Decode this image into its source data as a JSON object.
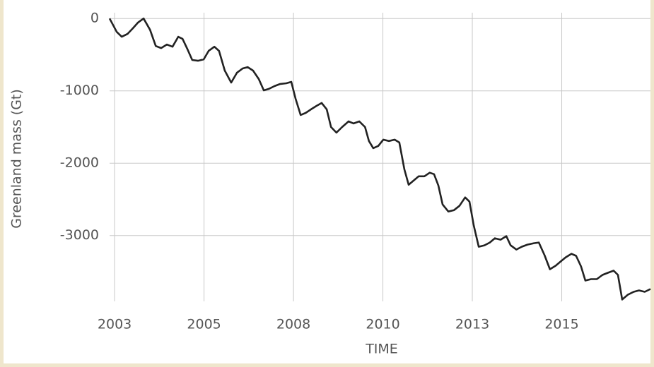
{
  "chart_data": {
    "type": "line",
    "x_label": "TIME",
    "y_label": "Greenland mass (Gt)",
    "xlim": [
      2002.86,
      2017.98
    ],
    "ylim": [
      -3910,
      80
    ],
    "xticks": [
      2003,
      {
        "value": 2005.5,
        "label": "2005"
      },
      2008,
      {
        "value": 2010.5,
        "label": "2010"
      },
      2013,
      {
        "value": 2015.5,
        "label": "2015"
      }
    ],
    "yticks": [
      0,
      -1000,
      -2000,
      -3000
    ],
    "grid": true,
    "x": [
      2002.86,
      2003.06,
      2003.2,
      2003.36,
      2003.51,
      2003.65,
      2003.81,
      2003.99,
      2004.15,
      2004.3,
      2004.46,
      2004.62,
      2004.78,
      2004.9,
      2005.04,
      2005.17,
      2005.33,
      2005.49,
      2005.63,
      2005.79,
      2005.92,
      2006.08,
      2006.26,
      2006.42,
      2006.58,
      2006.72,
      2006.87,
      2007.03,
      2007.17,
      2007.31,
      2007.47,
      2007.62,
      2007.8,
      2007.94,
      2008.06,
      2008.2,
      2008.34,
      2008.49,
      2008.65,
      2008.79,
      2008.93,
      2009.05,
      2009.2,
      2009.36,
      2009.54,
      2009.68,
      2009.84,
      2010.0,
      2010.11,
      2010.23,
      2010.37,
      2010.51,
      2010.67,
      2010.83,
      2010.96,
      2011.1,
      2011.22,
      2011.36,
      2011.5,
      2011.66,
      2011.81,
      2011.93,
      2012.05,
      2012.17,
      2012.33,
      2012.49,
      2012.64,
      2012.8,
      2012.92,
      2013.04,
      2013.18,
      2013.34,
      2013.49,
      2013.63,
      2013.79,
      2013.95,
      2014.07,
      2014.23,
      2014.38,
      2014.54,
      2014.72,
      2014.86,
      2015.02,
      2015.17,
      2015.33,
      2015.49,
      2015.61,
      2015.77,
      2015.9,
      2016.04,
      2016.16,
      2016.32,
      2016.48,
      2016.64,
      2016.79,
      2016.95,
      2017.07,
      2017.19,
      2017.35,
      2017.51,
      2017.66,
      2017.82,
      2017.98
    ],
    "series": [
      {
        "color": "#222222",
        "values": [
          0,
          -185,
          -253,
          -214,
          -136,
          -58,
          0,
          -156,
          -380,
          -409,
          -360,
          -390,
          -253,
          -282,
          -428,
          -574,
          -584,
          -565,
          -448,
          -390,
          -448,
          -720,
          -886,
          -750,
          -691,
          -672,
          -720,
          -837,
          -993,
          -974,
          -935,
          -906,
          -896,
          -876,
          -1110,
          -1334,
          -1305,
          -1256,
          -1207,
          -1168,
          -1256,
          -1500,
          -1577,
          -1500,
          -1422,
          -1451,
          -1422,
          -1500,
          -1694,
          -1792,
          -1762,
          -1675,
          -1694,
          -1675,
          -1714,
          -2084,
          -2298,
          -2240,
          -2181,
          -2181,
          -2132,
          -2152,
          -2308,
          -2571,
          -2668,
          -2649,
          -2590,
          -2473,
          -2532,
          -2863,
          -3155,
          -3135,
          -3096,
          -3038,
          -3057,
          -3009,
          -3135,
          -3194,
          -3155,
          -3126,
          -3106,
          -3096,
          -3272,
          -3466,
          -3417,
          -3350,
          -3301,
          -3252,
          -3281,
          -3427,
          -3622,
          -3603,
          -3603,
          -3544,
          -3515,
          -3486,
          -3544,
          -3885,
          -3817,
          -3778,
          -3759,
          -3778,
          -3739
        ]
      }
    ]
  }
}
